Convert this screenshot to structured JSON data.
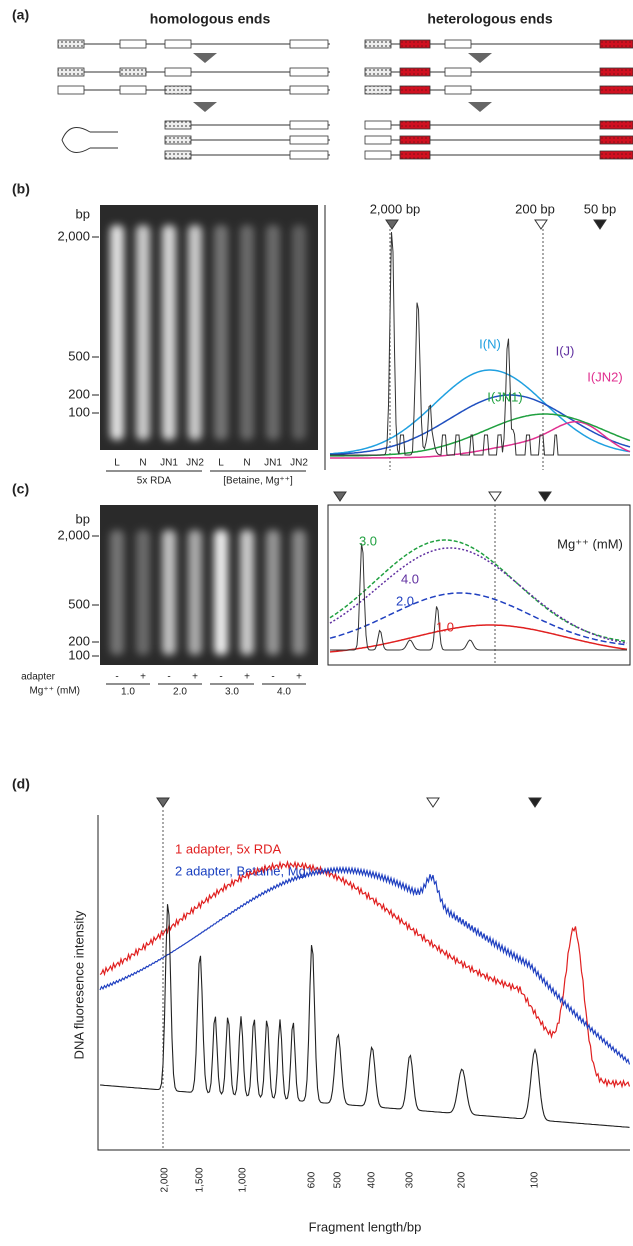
{
  "panel_a": {
    "label": "(a)",
    "left_title": "homologous ends",
    "right_title": "heterologous ends"
  },
  "panel_b": {
    "label": "(b)",
    "size_unit": "bp",
    "gel_sizes": [
      "2,000",
      "500",
      "200",
      "100"
    ],
    "lanes": [
      "L",
      "N",
      "JN1",
      "JN2",
      "L",
      "N",
      "JN1",
      "JN2"
    ],
    "groups": [
      "5x RDA",
      "[Betaine, Mg⁺⁺]"
    ],
    "markers": [
      "2,000 bp",
      "200 bp",
      "50 bp"
    ],
    "traces": [
      "I(N)",
      "I(J)",
      "I(JN2)",
      "I(JN1)"
    ]
  },
  "panel_c": {
    "label": "(c)",
    "size_unit": "bp",
    "gel_sizes": [
      "2,000",
      "500",
      "200",
      "100"
    ],
    "signs": [
      "-",
      "+",
      "-",
      "+",
      "-",
      "+",
      "-",
      "+"
    ],
    "sign_row_label": "adapter",
    "mg_row_label": "Mg⁺⁺ (mM)",
    "mg_values": [
      "1.0",
      "2.0",
      "3.0",
      "4.0"
    ],
    "legend_title": "Mg⁺⁺ (mM)",
    "traces": [
      "3.0",
      "4.0",
      "2.0",
      "1.0"
    ]
  },
  "panel_d": {
    "label": "(d)",
    "legend": [
      "1 adapter, 5x RDA",
      "2 adapter, Betaine, Mg⁺⁺"
    ],
    "y_label": "DNA fluoresence intensity",
    "x_label": "Fragment length/bp",
    "x_ticks": [
      "2,000",
      "1,500",
      "1,000",
      "600",
      "500",
      "400",
      "300",
      "200",
      "100"
    ]
  }
}
